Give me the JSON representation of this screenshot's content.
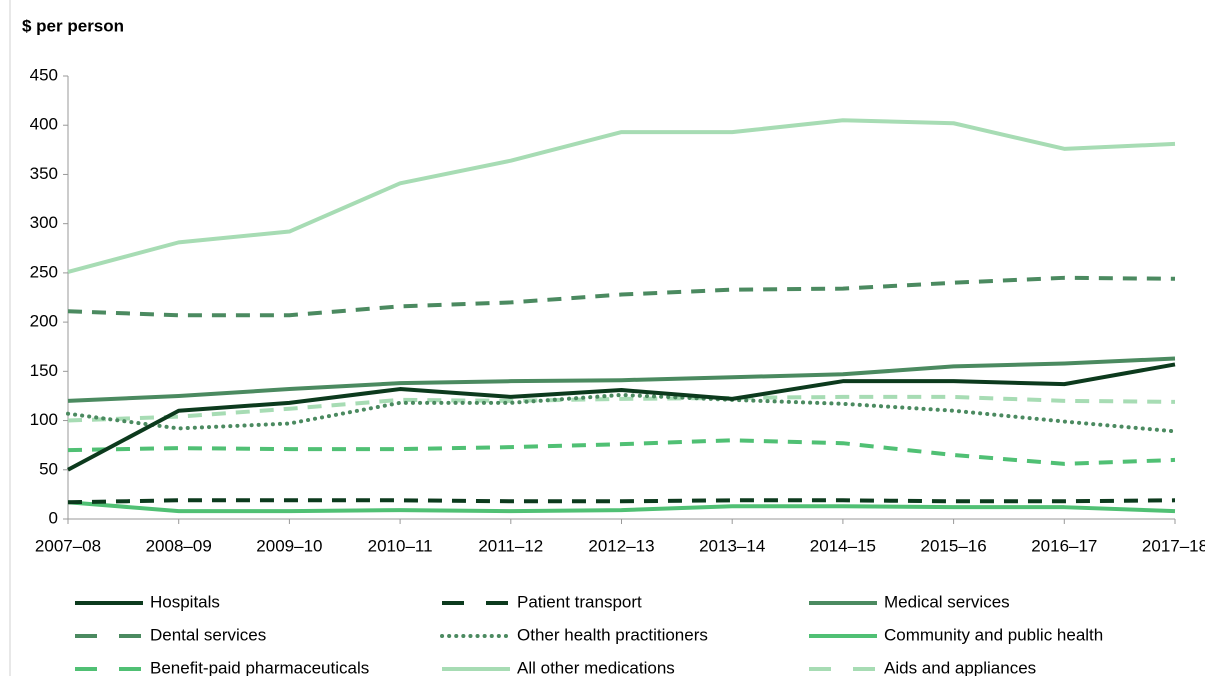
{
  "chart_data": {
    "type": "line",
    "title": "$ per person",
    "categories": [
      "2007–08",
      "2008–09",
      "2009–10",
      "2010–11",
      "2011–12",
      "2012–13",
      "2013–14",
      "2014–15",
      "2015–16",
      "2016–17",
      "2017–18"
    ],
    "ylim": [
      0,
      450
    ],
    "yticks": [
      0,
      50,
      100,
      150,
      200,
      250,
      300,
      350,
      400,
      450
    ],
    "grid": false,
    "series": [
      {
        "name": "Hospitals",
        "color": "#0c3a1d",
        "dash": "solid",
        "values": [
          50,
          110,
          118,
          132,
          124,
          131,
          122,
          140,
          140,
          137,
          157
        ]
      },
      {
        "name": "Patient transport",
        "color": "#0c3a1d",
        "dash": "dashed",
        "values": [
          17,
          19,
          19,
          19,
          18,
          18,
          19,
          19,
          18,
          18,
          19
        ]
      },
      {
        "name": "Medical services",
        "color": "#4b8a60",
        "dash": "solid",
        "values": [
          120,
          125,
          132,
          138,
          140,
          141,
          144,
          147,
          155,
          158,
          163
        ]
      },
      {
        "name": "Dental services",
        "color": "#4b8a60",
        "dash": "dashed",
        "values": [
          211,
          207,
          207,
          216,
          220,
          228,
          233,
          234,
          240,
          245,
          244
        ]
      },
      {
        "name": "Other health practitioners",
        "color": "#4b8a60",
        "dash": "dotted",
        "values": [
          107,
          92,
          97,
          118,
          118,
          126,
          121,
          117,
          110,
          99,
          89
        ]
      },
      {
        "name": "Community and public health",
        "color": "#50c074",
        "dash": "solid",
        "values": [
          17,
          8,
          8,
          9,
          8,
          9,
          13,
          13,
          12,
          12,
          8
        ]
      },
      {
        "name": "Benefit-paid pharmaceuticals",
        "color": "#50c074",
        "dash": "dashed",
        "values": [
          70,
          72,
          71,
          71,
          73,
          76,
          80,
          77,
          65,
          56,
          60
        ]
      },
      {
        "name": "All other medications",
        "color": "#a7dcb4",
        "dash": "solid",
        "values": [
          251,
          281,
          292,
          341,
          364,
          393,
          393,
          405,
          402,
          376,
          381
        ]
      },
      {
        "name": "Aids and appliances",
        "color": "#a7dcb4",
        "dash": "dashed",
        "values": [
          100,
          104,
          112,
          121,
          120,
          122,
          123,
          124,
          124,
          120,
          119
        ]
      }
    ]
  }
}
